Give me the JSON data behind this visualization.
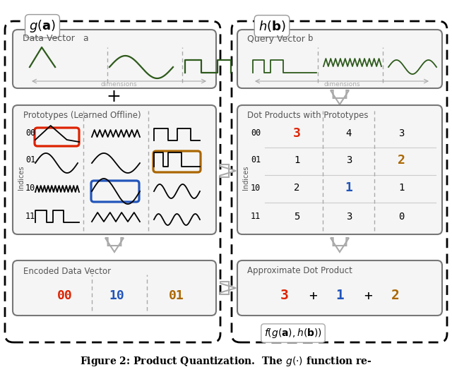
{
  "bg_color": "#ffffff",
  "green": "#2d5a1b",
  "red": "#dd2200",
  "blue": "#2255bb",
  "orange": "#aa6600",
  "gray_text": "#555555",
  "gray_box": "#777777",
  "light_bg": "#f5f5f5",
  "dot_products": {
    "00": [
      3,
      4,
      3
    ],
    "01": [
      1,
      3,
      2
    ],
    "10": [
      2,
      1,
      1
    ],
    "11": [
      5,
      3,
      0
    ]
  },
  "indices": [
    "00",
    "01",
    "10",
    "11"
  ],
  "encoded": [
    "00",
    "10",
    "01"
  ],
  "approx": [
    "3",
    "+",
    "1",
    "+",
    "2"
  ]
}
